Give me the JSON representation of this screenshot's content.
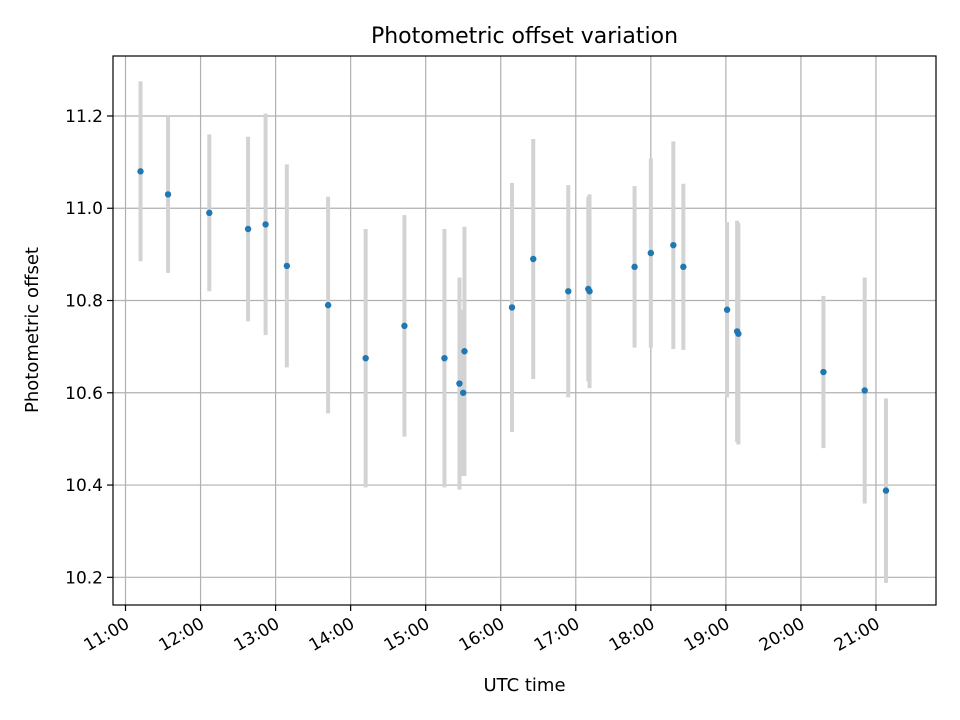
{
  "chart_data": {
    "type": "scatter",
    "title": "Photometric offset variation",
    "xlabel": "UTC time",
    "ylabel": "Photometric offset",
    "xlim": [
      "10:50",
      "21:48"
    ],
    "ylim": [
      10.14,
      11.33
    ],
    "grid": true,
    "legend": "none",
    "x_ticks": [
      "11:00",
      "12:00",
      "13:00",
      "14:00",
      "15:00",
      "16:00",
      "17:00",
      "18:00",
      "19:00",
      "20:00",
      "21:00"
    ],
    "y_ticks": [
      10.2,
      10.4,
      10.6,
      10.8,
      11.0,
      11.2
    ],
    "series": [
      {
        "marker_color": "#1f77b4",
        "errorbar_color": "#d3d3d3",
        "points": [
          {
            "time": "11:12",
            "y": 11.08,
            "err": 0.195
          },
          {
            "time": "11:34",
            "y": 11.03,
            "err": 0.17
          },
          {
            "time": "12:07",
            "y": 10.99,
            "err": 0.17
          },
          {
            "time": "12:38",
            "y": 10.955,
            "err": 0.2
          },
          {
            "time": "12:52",
            "y": 10.965,
            "err": 0.24
          },
          {
            "time": "13:09",
            "y": 10.875,
            "err": 0.22
          },
          {
            "time": "13:42",
            "y": 10.79,
            "err": 0.235
          },
          {
            "time": "14:12",
            "y": 10.675,
            "err": 0.28
          },
          {
            "time": "14:43",
            "y": 10.745,
            "err": 0.24
          },
          {
            "time": "15:15",
            "y": 10.675,
            "err": 0.28
          },
          {
            "time": "15:27",
            "y": 10.62,
            "err": 0.23
          },
          {
            "time": "15:30",
            "y": 10.6,
            "err": 0.18
          },
          {
            "time": "15:31",
            "y": 10.69,
            "err": 0.27
          },
          {
            "time": "16:09",
            "y": 10.785,
            "err": 0.27
          },
          {
            "time": "16:26",
            "y": 10.89,
            "err": 0.26
          },
          {
            "time": "16:54",
            "y": 10.82,
            "err": 0.23
          },
          {
            "time": "17:10",
            "y": 10.825,
            "err": 0.2
          },
          {
            "time": "17:11",
            "y": 10.82,
            "err": 0.21
          },
          {
            "time": "17:47",
            "y": 10.873,
            "err": 0.175
          },
          {
            "time": "18:00",
            "y": 10.903,
            "err": 0.205
          },
          {
            "time": "18:18",
            "y": 10.92,
            "err": 0.225
          },
          {
            "time": "18:26",
            "y": 10.873,
            "err": 0.18
          },
          {
            "time": "19:01",
            "y": 10.78,
            "err": 0.19
          },
          {
            "time": "19:09",
            "y": 10.733,
            "err": 0.24
          },
          {
            "time": "19:10",
            "y": 10.728,
            "err": 0.24
          },
          {
            "time": "20:18",
            "y": 10.645,
            "err": 0.165
          },
          {
            "time": "20:51",
            "y": 10.605,
            "err": 0.245
          },
          {
            "time": "21:08",
            "y": 10.388,
            "err": 0.2
          }
        ]
      }
    ]
  }
}
